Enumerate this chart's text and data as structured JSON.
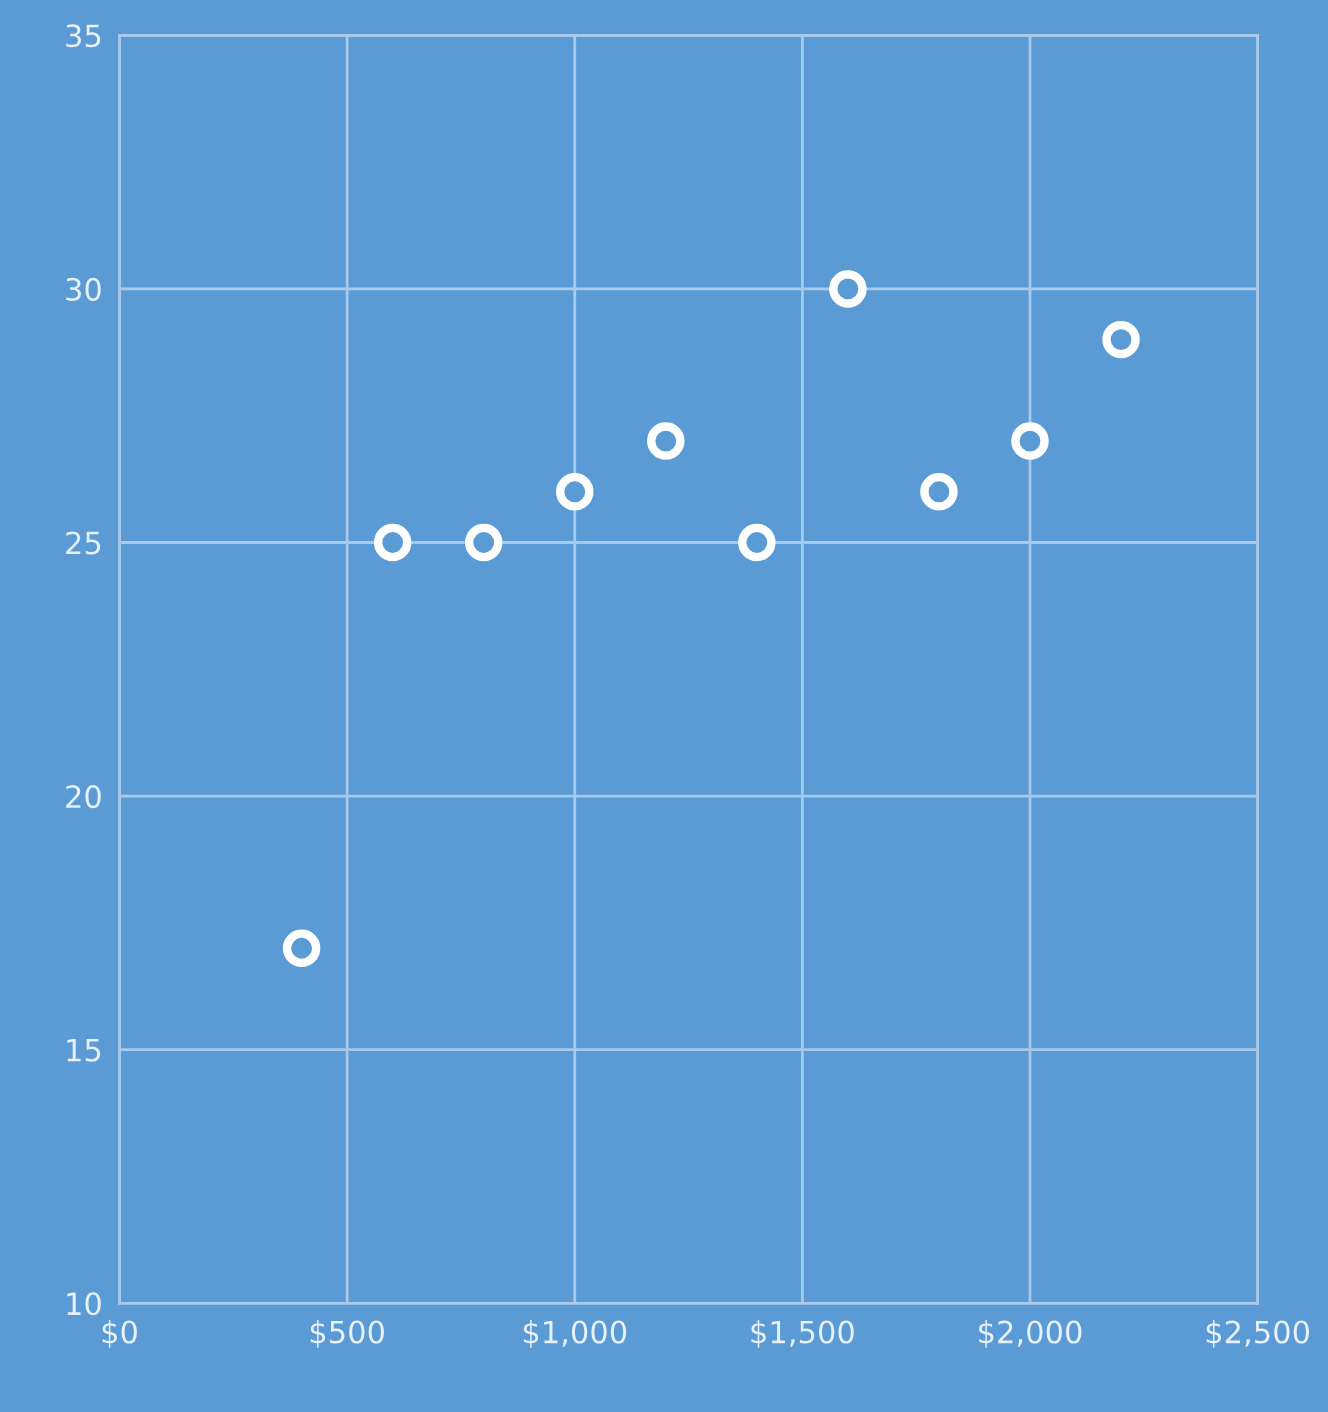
{
  "chart_data": {
    "type": "scatter",
    "x": [
      400,
      600,
      800,
      1000,
      1200,
      1400,
      1600,
      1800,
      2000,
      2200
    ],
    "series": [
      {
        "color": "#ffffff",
        "values": [
          17,
          25,
          25,
          26,
          27,
          25,
          30,
          26,
          27,
          29
        ]
      }
    ],
    "xlim": [
      0,
      2500
    ],
    "xticks": [
      {
        "value": 0,
        "label": "$0"
      },
      {
        "value": 500,
        "label": "$500"
      },
      {
        "value": 1000,
        "label": "$1,000"
      },
      {
        "value": 1500,
        "label": "$1,500"
      },
      {
        "value": 2000,
        "label": "$2,000"
      },
      {
        "value": 2500,
        "label": "$2,500"
      }
    ],
    "ylim": [
      10,
      35
    ],
    "yticks": [
      10,
      15,
      20,
      25,
      30,
      35
    ],
    "grid": true,
    "marker": "circle"
  }
}
